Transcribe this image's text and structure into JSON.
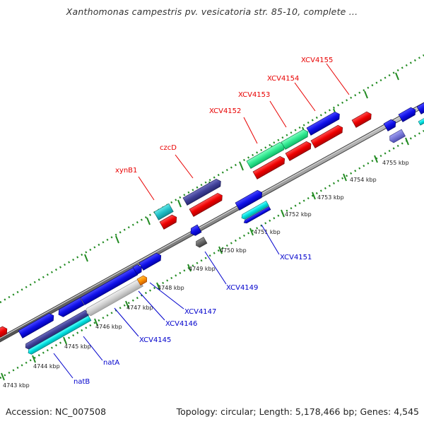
{
  "title": "Xanthomonas campestris pv. vesicatoria str. 85-10, complete ...",
  "footer": {
    "accession": "Accession: NC_007508",
    "summary": "Topology: circular; Length: 5,178,466 bp; Genes: 4,545"
  },
  "colors": {
    "forward_label": "#e80000",
    "reverse_label": "#0000cc",
    "backbone": "#808080",
    "tick": "#228b22"
  },
  "ruler": {
    "outer_ticks": [],
    "inner_ticks": [
      "4743 kbp",
      "4744 kbp",
      "4745 kbp",
      "4746 kbp",
      "4747 kbp",
      "4748 kbp",
      "4749 kbp",
      "4750 kbp",
      "4751 kbp",
      "4752 kbp",
      "4753 kbp",
      "4754 kbp",
      "4755 kbp"
    ]
  },
  "forward_labels": [
    "xynB1",
    "czcD",
    "XCV4152",
    "XCV4153",
    "XCV4154",
    "XCV4155"
  ],
  "reverse_labels": [
    "natB",
    "natA",
    "XCV4145",
    "XCV4146",
    "XCV4147",
    "XCV4149",
    "XCV4151"
  ]
}
